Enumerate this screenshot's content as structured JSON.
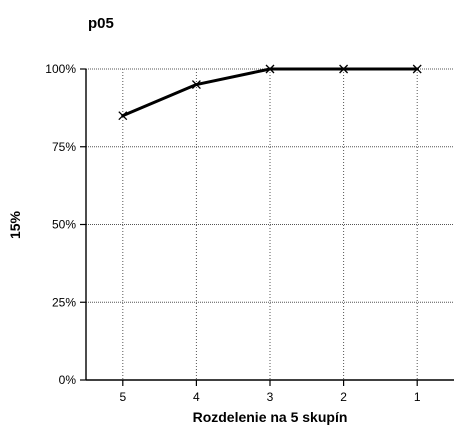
{
  "chart_data": {
    "type": "line",
    "title": "p05",
    "xlabel": "Rozdelenie na 5 skupín",
    "ylabel": "15%",
    "categories": [
      "5",
      "4",
      "3",
      "2",
      "1"
    ],
    "series": [
      {
        "values": [
          85,
          95,
          100,
          100,
          100
        ],
        "color": "#000000",
        "marker": "x"
      }
    ],
    "ylim": [
      0,
      100
    ],
    "yticks": [
      0,
      25,
      50,
      75,
      100
    ],
    "ytick_labels": [
      "0%",
      "25%",
      "50%",
      "75%",
      "100%"
    ],
    "grid": true,
    "legend": "none"
  }
}
